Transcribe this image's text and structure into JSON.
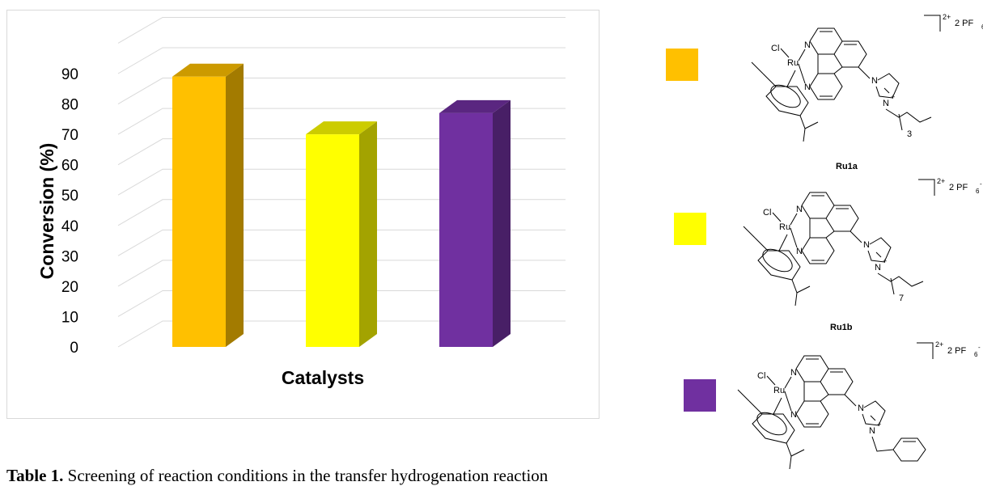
{
  "chart_data": {
    "type": "bar",
    "style": "3d-column",
    "title": "",
    "xlabel": "Catalysts",
    "ylabel": "Conversion (%)",
    "ylim": [
      0,
      90
    ],
    "yticks": [
      0,
      10,
      20,
      30,
      40,
      50,
      60,
      70,
      80,
      90
    ],
    "grid": true,
    "legend": "none",
    "categories": [
      "",
      "",
      ""
    ],
    "values": [
      89,
      70,
      77
    ],
    "colors": [
      "#ffc000",
      "#ffff00",
      "#7030a0"
    ]
  },
  "legend_key": [
    {
      "color": "#ffc000",
      "label": "Ru1a"
    },
    {
      "color": "#ffff00",
      "label": "Ru1b"
    },
    {
      "color": "#7030a0",
      "label": ""
    }
  ],
  "structure": {
    "charge": "2+",
    "counterion": "2 PF",
    "counterion_sub": "6",
    "counterion_sup": "-",
    "atoms": {
      "cl": "Cl",
      "ru": "Ru",
      "n": "N"
    },
    "chain_counts": [
      "3",
      "7"
    ]
  },
  "caption": {
    "bold": "Table 1.",
    "text": " Screening of reaction conditions in the transfer hydrogenation reaction"
  }
}
